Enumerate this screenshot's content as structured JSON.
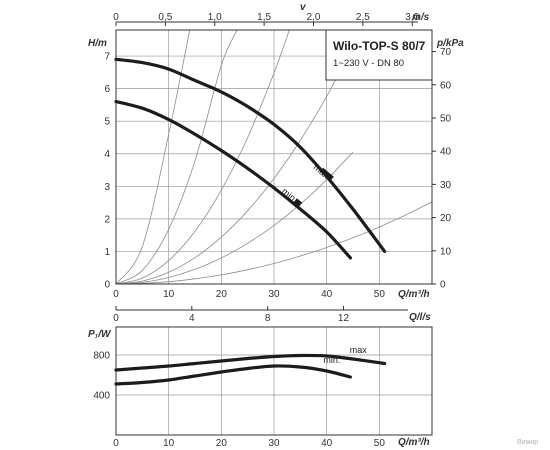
{
  "chart_data": [
    {
      "type": "line",
      "title": "Wilo-TOP-S 80/7",
      "subtitle": "1~230 V - DN 80",
      "xlabel": "Q/m³/h",
      "ylabel": "H/m",
      "y2label": "p/kPa",
      "x2label": "v",
      "x2unit": "m/s",
      "x3label": "Q/l/s",
      "xlim": [
        0,
        60
      ],
      "ylim": [
        0,
        7.8
      ],
      "y2lim": [
        0,
        76.5
      ],
      "x2lim": [
        0,
        3.2
      ],
      "x3lim": [
        0,
        16.67
      ],
      "grid": true,
      "x_ticks": [
        0,
        10,
        20,
        30,
        40,
        50
      ],
      "y_ticks": [
        0,
        1,
        2,
        3,
        4,
        5,
        6,
        7
      ],
      "y2_ticks": [
        0,
        10,
        20,
        30,
        40,
        50,
        60,
        70
      ],
      "x2_ticks": [
        "0",
        "0,5",
        "1,0",
        "1,5",
        "2,0",
        "2,5",
        "3,0"
      ],
      "x3_ticks": [
        0,
        4,
        8,
        12
      ],
      "series": [
        {
          "name": "max",
          "x": [
            0,
            5,
            10,
            15,
            20,
            25,
            30,
            35,
            40,
            45,
            51
          ],
          "y": [
            6.9,
            6.8,
            6.6,
            6.25,
            5.9,
            5.45,
            4.9,
            4.2,
            3.3,
            2.3,
            1.0
          ]
        },
        {
          "name": "min.",
          "x": [
            0,
            5,
            10,
            15,
            20,
            25,
            30,
            35,
            40,
            44.5
          ],
          "y": [
            5.6,
            5.4,
            5.05,
            4.6,
            4.1,
            3.55,
            2.95,
            2.3,
            1.6,
            0.8
          ]
        }
      ],
      "system_curves": [
        {
          "x": [
            0,
            5,
            10,
            15,
            20,
            25,
            30,
            35,
            40,
            45,
            50,
            55,
            60
          ],
          "y": [
            0,
            0.02,
            0.07,
            0.16,
            0.28,
            0.44,
            0.63,
            0.86,
            1.12,
            1.42,
            1.75,
            2.12,
            2.52
          ]
        },
        {
          "x": [
            0,
            5,
            10,
            15,
            20,
            25,
            30,
            35,
            40,
            45
          ],
          "y": [
            0,
            0.05,
            0.2,
            0.45,
            0.8,
            1.25,
            1.8,
            2.45,
            3.2,
            4.05
          ]
        },
        {
          "x": [
            0,
            5,
            10,
            15,
            20,
            25,
            30,
            35,
            40,
            45
          ],
          "y": [
            0,
            0.09,
            0.36,
            0.81,
            1.44,
            2.25,
            3.24,
            4.41,
            5.76,
            7.29
          ]
        },
        {
          "x": [
            0,
            5,
            10,
            15,
            20,
            25,
            30,
            33
          ],
          "y": [
            0,
            0.18,
            0.72,
            1.62,
            2.88,
            4.5,
            6.48,
            7.84
          ]
        },
        {
          "x": [
            0,
            5,
            10,
            15,
            20,
            23
          ],
          "y": [
            0,
            0.42,
            1.68,
            3.78,
            6.72,
            7.8
          ]
        },
        {
          "x": [
            0,
            5,
            10,
            14
          ],
          "y": [
            0,
            1.15,
            4.6,
            7.8
          ]
        }
      ]
    },
    {
      "type": "line",
      "xlabel": "Q/m³/h",
      "ylabel": "P₁/W",
      "xlim": [
        0,
        60
      ],
      "ylim": [
        0,
        1080
      ],
      "grid": true,
      "x_ticks": [
        0,
        10,
        20,
        30,
        40,
        50
      ],
      "y_ticks": [
        400,
        800
      ],
      "series": [
        {
          "name": "max",
          "x": [
            0,
            5,
            10,
            15,
            20,
            25,
            30,
            35,
            40,
            45,
            51
          ],
          "y": [
            650,
            670,
            690,
            715,
            740,
            765,
            785,
            795,
            790,
            760,
            715
          ]
        },
        {
          "name": "min.",
          "x": [
            0,
            5,
            10,
            15,
            20,
            25,
            30,
            35,
            40,
            44.5
          ],
          "y": [
            510,
            525,
            550,
            590,
            630,
            665,
            690,
            680,
            640,
            580
          ]
        }
      ]
    }
  ],
  "watermark": "Вимир"
}
